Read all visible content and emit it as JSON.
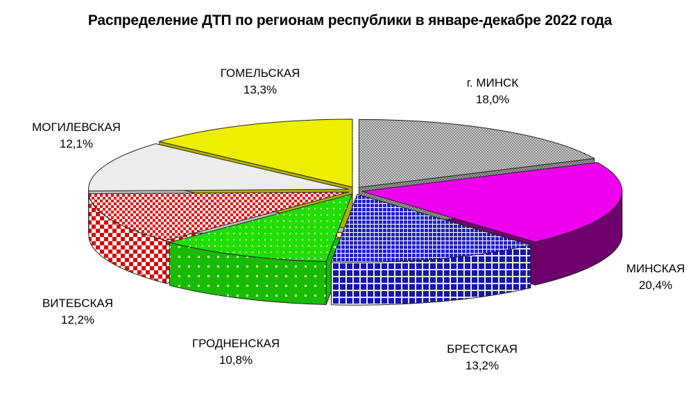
{
  "chart_data": {
    "type": "pie",
    "title": "Распределение ДТП по регионам республики в январе-декабре 2022 года",
    "slices": [
      {
        "name": "г. МИНСК",
        "value": 18.0,
        "label": "18,0%",
        "color": "#b4b4b4",
        "side_color": "#7a7a7a",
        "pattern": "fine-checker"
      },
      {
        "name": "МИНСКАЯ",
        "value": 20.4,
        "label": "20,4%",
        "color": "#ee00ee",
        "side_color": "#6e006e",
        "pattern": "solid"
      },
      {
        "name": "БРЕСТСКАЯ",
        "value": 13.2,
        "label": "13,2%",
        "color": "#1a1acc",
        "side_color": "#14149c",
        "pattern": "grid"
      },
      {
        "name": "ГРОДНЕНСКАЯ",
        "value": 10.8,
        "label": "10,8%",
        "color": "#22dd00",
        "side_color": "#11aa00",
        "pattern": "dots"
      },
      {
        "name": "ВИТЕБСКАЯ",
        "value": 12.2,
        "label": "12,2%",
        "color": "#ee1111",
        "side_color": "#cc0000",
        "pattern": "checker"
      },
      {
        "name": "МОГИЛЕВСКАЯ",
        "value": 12.1,
        "label": "12,1%",
        "color": "#ececec",
        "side_color": "#bdbdbd",
        "pattern": "solid"
      },
      {
        "name": "ГОМЕЛЬСКАЯ",
        "value": 13.3,
        "label": "13,3%",
        "color": "#eeee00",
        "side_color": "#b0b000",
        "pattern": "solid"
      }
    ]
  }
}
